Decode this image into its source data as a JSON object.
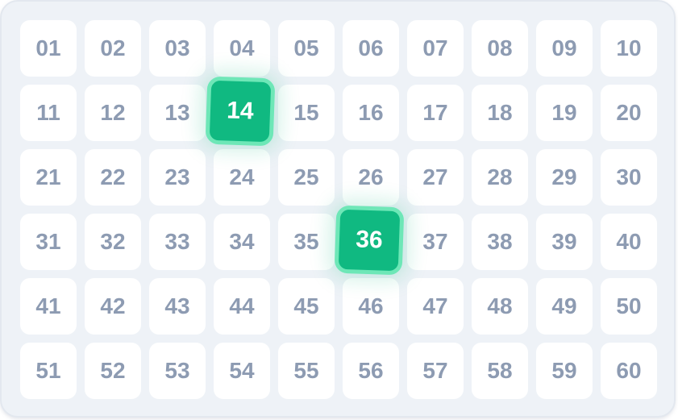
{
  "grid": {
    "columns": 10,
    "numbers": [
      "01",
      "02",
      "03",
      "04",
      "05",
      "06",
      "07",
      "08",
      "09",
      "10",
      "11",
      "12",
      "13",
      "14",
      "15",
      "16",
      "17",
      "18",
      "19",
      "20",
      "21",
      "22",
      "23",
      "24",
      "25",
      "26",
      "27",
      "28",
      "29",
      "30",
      "31",
      "32",
      "33",
      "34",
      "35",
      "36",
      "37",
      "38",
      "39",
      "40",
      "41",
      "42",
      "43",
      "44",
      "45",
      "46",
      "47",
      "48",
      "49",
      "50",
      "51",
      "52",
      "53",
      "54",
      "55",
      "56",
      "57",
      "58",
      "59",
      "60"
    ],
    "selected": [
      "14",
      "36"
    ],
    "colors": {
      "selected_fill": "#10b981",
      "selected_border": "#6ee7b7",
      "number_text": "#8d9bb2",
      "cell_bg": "#ffffff",
      "board_bg": "#eef2f7"
    }
  }
}
